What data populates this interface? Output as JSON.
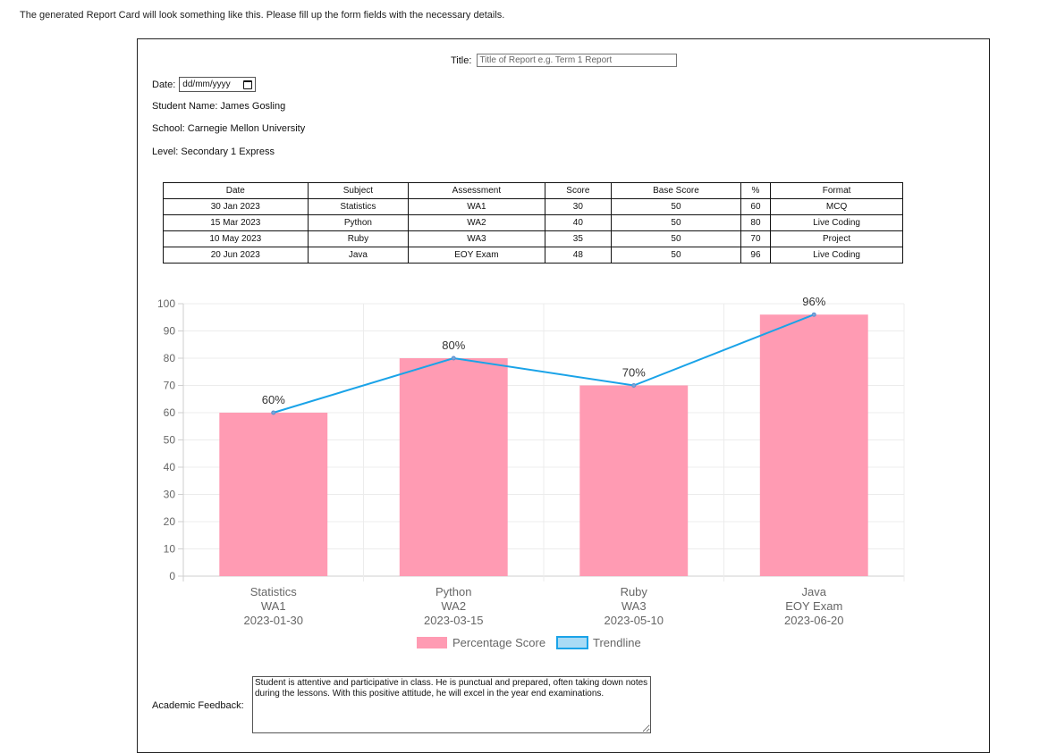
{
  "intro_text": "The generated Report Card will look something like this. Please fill up the form fields with the necessary details.",
  "header": {
    "title_label": "Title:",
    "title_placeholder": "Title of Report e.g. Term 1 Report"
  },
  "details": {
    "date_label": "Date:",
    "date_placeholder": "dd/mm/yyyy",
    "student_name": "Student Name: James Gosling",
    "school": "School: Carnegie Mellon University",
    "level": "Level: Secondary 1 Express"
  },
  "table": {
    "headers": [
      "Date",
      "Subject",
      "Assessment",
      "Score",
      "Base Score",
      "%",
      "Format"
    ],
    "rows": [
      [
        "30 Jan 2023",
        "Statistics",
        "WA1",
        "30",
        "50",
        "60",
        "MCQ"
      ],
      [
        "15 Mar 2023",
        "Python",
        "WA2",
        "40",
        "50",
        "80",
        "Live Coding"
      ],
      [
        "10 May 2023",
        "Ruby",
        "WA3",
        "35",
        "50",
        "70",
        "Project"
      ],
      [
        "20 Jun 2023",
        "Java",
        "EOY Exam",
        "48",
        "50",
        "96",
        "Live Coding"
      ]
    ]
  },
  "chart_data": {
    "type": "bar",
    "categories": [
      [
        "Statistics",
        "WA1",
        "2023-01-30"
      ],
      [
        "Python",
        "WA2",
        "2023-03-15"
      ],
      [
        "Ruby",
        "WA3",
        "2023-05-10"
      ],
      [
        "Java",
        "EOY Exam",
        "2023-06-20"
      ]
    ],
    "series": [
      {
        "name": "Percentage Score",
        "type": "bar",
        "values": [
          60,
          80,
          70,
          96
        ],
        "color": "#ff9bb3"
      },
      {
        "name": "Trendline",
        "type": "line",
        "values": [
          60,
          80,
          70,
          96
        ],
        "color": "#1aa3e8"
      }
    ],
    "data_labels": [
      "60%",
      "80%",
      "70%",
      "96%"
    ],
    "yticks": [
      0,
      10,
      20,
      30,
      40,
      50,
      60,
      70,
      80,
      90,
      100
    ],
    "ylim": [
      0,
      100
    ],
    "legend_position": "bottom"
  },
  "feedback": {
    "label": "Academic Feedback:",
    "text": "Student is attentive and participative in class. He is punctual and prepared, often taking down notes during the lessons. With this positive attitude, he will excel in the year end examinations."
  }
}
